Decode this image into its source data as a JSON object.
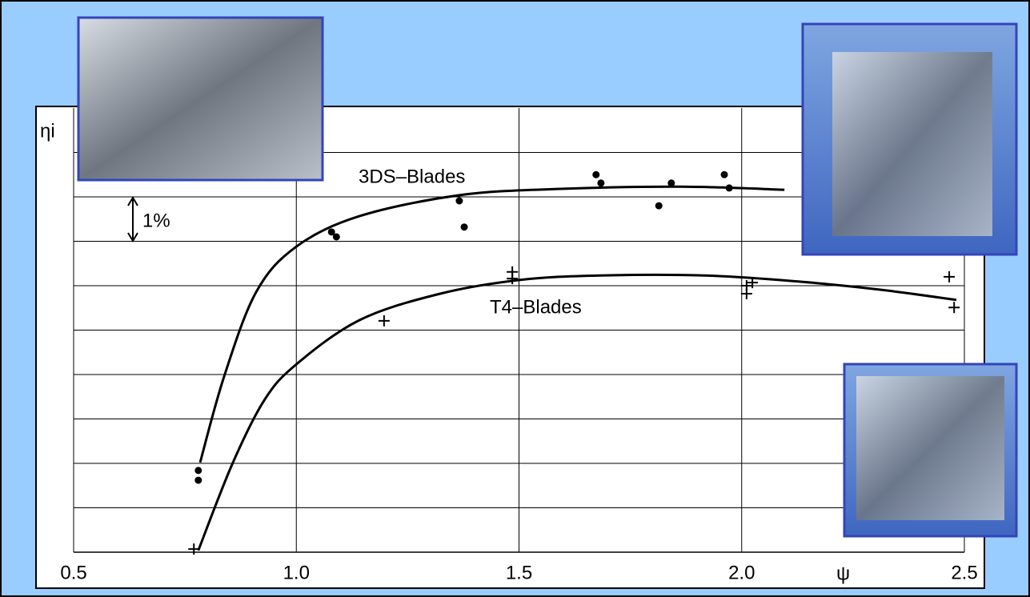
{
  "chart_data": {
    "type": "scatter",
    "x_label": "ψ",
    "y_label": "ηi",
    "annotation": "1%",
    "xlim": [
      0.5,
      2.5
    ],
    "xticks": [
      0.5,
      {
        "value": 1.0,
        "label": "1.0"
      },
      1.5,
      {
        "value": 2.0,
        "label": "2.0"
      },
      2.5
    ],
    "ylim": [
      0,
      10
    ],
    "yticks": [
      1,
      2,
      3,
      4,
      5,
      6,
      7,
      8,
      9
    ],
    "grid": true,
    "series": [
      {
        "name": "3DS–Blades",
        "color": "#000000",
        "marker": "dot",
        "x": [
          0.78,
          0.78,
          1.079,
          1.09,
          1.366,
          1.377,
          1.673,
          1.684,
          1.814,
          1.842,
          1.961,
          1.972
        ],
        "values": [
          1.84,
          1.62,
          7.21,
          7.1,
          7.91,
          7.32,
          8.5,
          8.31,
          7.8,
          8.31,
          8.5,
          8.2
        ],
        "curve": {
          "x": [
            0.784,
            0.838,
            0.91,
            1.0,
            1.143,
            1.368,
            1.593,
            1.862,
            2.096
          ],
          "y": [
            2.02,
            3.96,
            5.86,
            6.88,
            7.57,
            8.04,
            8.18,
            8.23,
            8.16
          ]
        }
      },
      {
        "name": "T4–Blades",
        "color": "#000000",
        "marker": "plus",
        "x": [
          0.77,
          1.197,
          1.485,
          1.485,
          2.011,
          2.011,
          2.024,
          2.466,
          2.477
        ],
        "values": [
          0.07,
          5.21,
          6.31,
          6.16,
          6.0,
          5.82,
          6.07,
          6.2,
          5.51
        ],
        "curve": {
          "x": [
            0.78,
            0.856,
            0.928,
            1.0,
            1.143,
            1.323,
            1.503,
            1.682,
            1.916,
            2.132,
            2.311,
            2.482
          ],
          "y": [
            0.04,
            1.98,
            3.42,
            4.23,
            5.23,
            5.82,
            6.13,
            6.23,
            6.23,
            6.09,
            5.91,
            5.68
          ]
        }
      }
    ]
  }
}
